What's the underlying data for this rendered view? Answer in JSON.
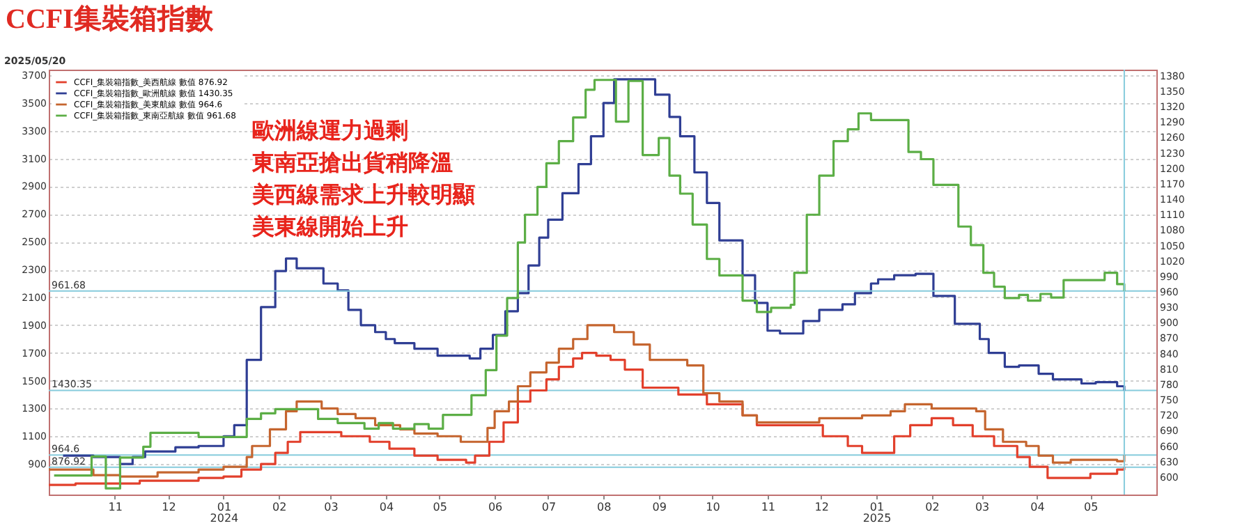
{
  "chart_data": {
    "type": "step",
    "title": "CCFI集裝箱指數",
    "annotations": [
      "2025/05/20",
      "歐洲線運力過剩",
      "東南亞搶出貨稍降溫",
      "美西線需求上升較明顯",
      "美東線開始上升"
    ],
    "xlim": [
      "2023-09-25",
      "2025-06-07"
    ],
    "xticks": [
      {
        "value": "2023-11-01",
        "label": "11"
      },
      {
        "value": "2023-12-01",
        "label": "12"
      },
      {
        "value": "2024-01-01",
        "label": "01\n2024"
      },
      {
        "value": "2024-02-01",
        "label": "02"
      },
      {
        "value": "2024-03-01",
        "label": "03"
      },
      {
        "value": "2024-04-01",
        "label": "04"
      },
      {
        "value": "2024-05-01",
        "label": "05"
      },
      {
        "value": "2024-06-01",
        "label": "06"
      },
      {
        "value": "2024-07-01",
        "label": "07"
      },
      {
        "value": "2024-08-01",
        "label": "08"
      },
      {
        "value": "2024-09-01",
        "label": "09"
      },
      {
        "value": "2024-10-01",
        "label": "10"
      },
      {
        "value": "2024-11-01",
        "label": "11"
      },
      {
        "value": "2024-12-01",
        "label": "12"
      },
      {
        "value": "2025-01-01",
        "label": "01\n2025"
      },
      {
        "value": "2025-02-01",
        "label": "02"
      },
      {
        "value": "2025-03-01",
        "label": "03"
      },
      {
        "value": "2025-04-01",
        "label": "04"
      },
      {
        "value": "2025-05-01",
        "label": "05"
      }
    ],
    "ylim": [
      680,
      3740
    ],
    "yticks": [
      900,
      1100,
      1300,
      1500,
      1700,
      1900,
      2100,
      2300,
      2500,
      2700,
      2900,
      3100,
      3300,
      3500,
      3700
    ],
    "y2lim": [
      566,
      1392
    ],
    "y2ticks": [
      600,
      630,
      660,
      690,
      720,
      750,
      780,
      810,
      840,
      870,
      900,
      930,
      960,
      990,
      1020,
      1050,
      1080,
      1110,
      1140,
      1170,
      1200,
      1230,
      1260,
      1290,
      1320,
      1350,
      1380
    ],
    "grid": "y",
    "legend": "top left",
    "line_style": "solid",
    "series": [
      {
        "name": "CCFI_集裝箱指數_美西航線  數值 876.92",
        "color": "#e2402c",
        "axis": "y",
        "x": [
          "2023-09-25",
          "2023-10-10",
          "2023-11-15",
          "2023-12-18",
          "2024-01-01",
          "2024-01-11",
          "2024-01-22",
          "2024-01-30",
          "2024-02-06",
          "2024-02-13",
          "2024-03-07",
          "2024-03-23",
          "2024-04-03",
          "2024-04-17",
          "2024-04-30",
          "2024-05-16",
          "2024-05-21",
          "2024-05-29",
          "2024-06-06",
          "2024-06-14",
          "2024-06-21",
          "2024-06-30",
          "2024-07-07",
          "2024-07-15",
          "2024-07-20",
          "2024-07-28",
          "2024-08-05",
          "2024-08-13",
          "2024-08-23",
          "2024-09-12",
          "2024-09-28",
          "2024-10-18",
          "2024-10-26",
          "2024-12-02",
          "2024-12-16",
          "2024-12-24",
          "2025-01-11",
          "2025-01-20",
          "2025-02-01",
          "2025-02-13",
          "2025-02-24",
          "2025-03-08",
          "2025-03-21",
          "2025-03-28",
          "2025-04-07",
          "2025-05-01",
          "2025-05-16",
          "2025-05-20"
        ],
        "values": [
          750,
          760,
          780,
          800,
          810,
          860,
          900,
          980,
          1060,
          1130,
          1100,
          1060,
          1010,
          960,
          930,
          910,
          960,
          1060,
          1200,
          1350,
          1430,
          1510,
          1600,
          1660,
          1700,
          1680,
          1650,
          1580,
          1450,
          1400,
          1330,
          1250,
          1180,
          1100,
          1030,
          980,
          1100,
          1180,
          1230,
          1180,
          1100,
          1030,
          950,
          880,
          800,
          830,
          860,
          876.92
        ]
      },
      {
        "name": "CCFI_集裝箱指數_歐洲航線  數值 1430.35",
        "color": "#2f3e94",
        "axis": "y",
        "x": [
          "2023-10-03",
          "2023-10-20",
          "2023-11-04",
          "2023-11-11",
          "2023-11-18",
          "2023-12-05",
          "2023-12-18",
          "2024-01-01",
          "2024-01-07",
          "2024-01-14",
          "2024-01-22",
          "2024-01-30",
          "2024-02-05",
          "2024-02-11",
          "2024-02-26",
          "2024-03-05",
          "2024-03-11",
          "2024-03-18",
          "2024-03-26",
          "2024-04-01",
          "2024-04-06",
          "2024-04-17",
          "2024-04-30",
          "2024-05-18",
          "2024-05-24",
          "2024-05-31",
          "2024-06-07",
          "2024-06-14",
          "2024-06-20",
          "2024-06-26",
          "2024-07-01",
          "2024-07-09",
          "2024-07-18",
          "2024-07-25",
          "2024-08-01",
          "2024-08-07",
          "2024-08-30",
          "2024-09-07",
          "2024-09-13",
          "2024-09-21",
          "2024-09-28",
          "2024-10-05",
          "2024-10-18",
          "2024-10-25",
          "2024-11-01",
          "2024-11-08",
          "2024-11-21",
          "2024-11-30",
          "2024-12-13",
          "2024-12-20",
          "2024-12-29",
          "2025-01-02",
          "2025-01-11",
          "2025-01-23",
          "2025-02-02",
          "2025-02-14",
          "2025-02-28",
          "2025-03-05",
          "2025-03-14",
          "2025-03-22",
          "2025-04-02",
          "2025-04-10",
          "2025-04-26",
          "2025-05-04",
          "2025-05-16",
          "2025-05-20"
        ],
        "values": [
          960,
          950,
          900,
          950,
          990,
          1020,
          1030,
          1100,
          1180,
          1650,
          2030,
          2290,
          2380,
          2310,
          2200,
          2150,
          2010,
          1900,
          1850,
          1800,
          1770,
          1730,
          1680,
          1660,
          1730,
          1830,
          2000,
          2130,
          2330,
          2530,
          2660,
          2850,
          3060,
          3260,
          3500,
          3670,
          3560,
          3400,
          3260,
          3000,
          2780,
          2510,
          2260,
          2060,
          1860,
          1840,
          1930,
          2010,
          2050,
          2130,
          2200,
          2230,
          2260,
          2270,
          2110,
          1910,
          1800,
          1700,
          1600,
          1610,
          1550,
          1510,
          1480,
          1490,
          1460,
          1430.35
        ]
      },
      {
        "name": "CCFI_集裝箱指數_美東航線  數值 964.6",
        "color": "#c5652f",
        "axis": "y",
        "x": [
          "2023-09-25",
          "2023-10-20",
          "2023-11-04",
          "2023-11-25",
          "2023-12-18",
          "2024-01-01",
          "2024-01-14",
          "2024-01-17",
          "2024-01-27",
          "2024-02-05",
          "2024-02-11",
          "2024-02-25",
          "2024-03-05",
          "2024-03-15",
          "2024-03-26",
          "2024-04-09",
          "2024-04-17",
          "2024-04-30",
          "2024-05-13",
          "2024-05-28",
          "2024-06-01",
          "2024-06-09",
          "2024-06-14",
          "2024-06-21",
          "2024-06-30",
          "2024-07-07",
          "2024-07-15",
          "2024-07-23",
          "2024-08-07",
          "2024-08-18",
          "2024-08-27",
          "2024-09-17",
          "2024-09-26",
          "2024-10-05",
          "2024-10-18",
          "2024-10-26",
          "2024-11-30",
          "2024-12-24",
          "2025-01-09",
          "2025-01-17",
          "2025-02-01",
          "2025-02-26",
          "2025-03-03",
          "2025-03-13",
          "2025-03-26",
          "2025-04-02",
          "2025-04-10",
          "2025-04-20",
          "2025-05-16",
          "2025-05-20"
        ],
        "values": [
          860,
          820,
          810,
          840,
          860,
          880,
          950,
          1030,
          1150,
          1280,
          1350,
          1300,
          1260,
          1230,
          1180,
          1150,
          1120,
          1100,
          1060,
          1160,
          1280,
          1350,
          1460,
          1560,
          1630,
          1730,
          1800,
          1900,
          1850,
          1760,
          1650,
          1610,
          1410,
          1350,
          1250,
          1200,
          1230,
          1250,
          1280,
          1330,
          1300,
          1280,
          1150,
          1060,
          1030,
          960,
          910,
          930,
          920,
          964.6
        ]
      },
      {
        "name": "CCFI_集裝箱指數_東南亞航線  數值 961.68",
        "color": "#5cae46",
        "axis": "y2",
        "x": [
          "2023-09-28",
          "2023-10-19",
          "2023-10-27",
          "2023-11-04",
          "2023-11-17",
          "2023-11-21",
          "2023-12-18",
          "2024-01-14",
          "2024-01-22",
          "2024-01-30",
          "2024-02-23",
          "2024-03-05",
          "2024-03-20",
          "2024-03-28",
          "2024-04-05",
          "2024-04-17",
          "2024-04-25",
          "2024-05-03",
          "2024-05-19",
          "2024-05-27",
          "2024-06-02",
          "2024-06-08",
          "2024-06-14",
          "2024-06-18",
          "2024-06-25",
          "2024-06-30",
          "2024-07-07",
          "2024-07-15",
          "2024-07-22",
          "2024-07-27",
          "2024-08-08",
          "2024-08-15",
          "2024-08-23",
          "2024-09-01",
          "2024-09-07",
          "2024-09-13",
          "2024-09-20",
          "2024-09-28",
          "2024-10-05",
          "2024-10-18",
          "2024-10-26",
          "2024-11-03",
          "2024-11-14",
          "2024-11-16",
          "2024-11-23",
          "2024-11-30",
          "2024-12-08",
          "2024-12-16",
          "2024-12-22",
          "2024-12-29",
          "2025-01-19",
          "2025-01-26",
          "2025-02-02",
          "2025-02-16",
          "2025-02-23",
          "2025-03-02",
          "2025-03-08",
          "2025-03-14",
          "2025-03-22",
          "2025-03-27",
          "2025-04-03",
          "2025-04-09",
          "2025-04-16",
          "2025-05-09",
          "2025-05-16",
          "2025-05-20"
        ],
        "values": [
          603,
          640,
          578,
          638,
          659,
          686,
          678,
          713,
          724,
          732,
          713,
          705,
          694,
          705,
          694,
          703,
          694,
          721,
          759,
          808,
          875,
          948,
          1056,
          1110,
          1164,
          1210,
          1253,
          1299,
          1353,
          1372,
          1291,
          1370,
          1226,
          1259,
          1186,
          1151,
          1091,
          1024,
          992,
          943,
          921,
          929,
          935,
          997,
          1110,
          1186,
          1253,
          1276,
          1307,
          1294,
          1232,
          1218,
          1168,
          1087,
          1051,
          997,
          970,
          948,
          954,
          943,
          956,
          949,
          983,
          997,
          975,
          961.68
        ]
      }
    ],
    "ref_lines": [
      {
        "axis": "y",
        "value": 1430.35,
        "label": "1430.35",
        "color": "#86cbdc"
      },
      {
        "axis": "y2",
        "value": 961.68,
        "label": "961.68",
        "color": "#86cbdc"
      },
      {
        "axis": "y",
        "value": 964.6,
        "label": "964.6",
        "color": "#86cbdc"
      },
      {
        "axis": "y",
        "value": 876.92,
        "label": "876.92",
        "color": "#86cbdc"
      },
      {
        "axis": "x",
        "value": "2025-05-20",
        "color": "#86cbdc"
      }
    ]
  }
}
